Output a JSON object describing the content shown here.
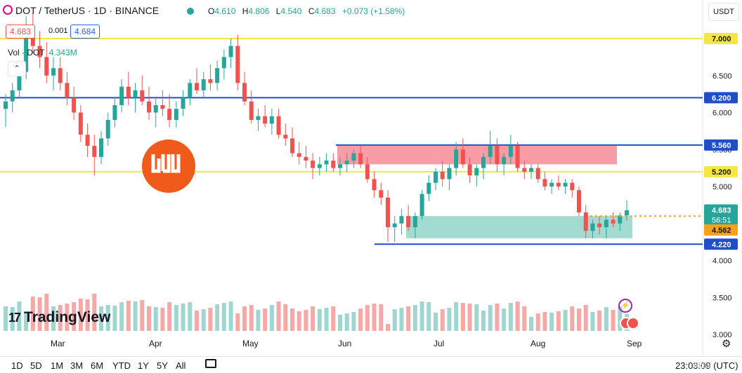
{
  "header": {
    "symbol": "DOT / TetherUS · 1D · BINANCE",
    "ohlc_o_label": "O",
    "ohlc_o": "4.610",
    "ohlc_h_label": "H",
    "ohlc_h": "4.806",
    "ohlc_l_label": "L",
    "ohlc_l": "4.540",
    "ohlc_c_label": "C",
    "ohlc_c": "4.683",
    "ohlc_change": "+0.073 (+1.58%)",
    "sell_price": "4.683",
    "spread": "0.001",
    "buy_price": "4.684",
    "volume_label": "Vol · DOT",
    "volume_value": "4.343M",
    "currency": "USDT",
    "collapse_glyph": "⌃"
  },
  "logo": {
    "text": "TradingView",
    "mark": "17"
  },
  "bottom": {
    "timeframes": [
      "1D",
      "5D",
      "1M",
      "3M",
      "6M",
      "YTD",
      "1Y",
      "5Y",
      "All"
    ],
    "time": "23:03:09 (UTC)",
    "watermark": "Aktiv"
  },
  "colors": {
    "up": "#26a69a",
    "down": "#ef5350",
    "vol_up": "#9fd6cf",
    "vol_down": "#f5a8a6",
    "yellow_line": "#f5e642",
    "blue_line": "#1e4fc8",
    "resistance_zone": "#f78c97",
    "support_zone": "#93d5c8",
    "current_price_line": "#f7a11a",
    "brand_badge": "#f05a1a"
  },
  "chart_data": {
    "type": "candlestick",
    "y_axis": {
      "range": [
        3.0,
        7.25
      ],
      "ticks": [
        "7.000",
        "6.500",
        "6.000",
        "5.500",
        "5.000",
        "4.500",
        "4.000",
        "3.500",
        "3.000"
      ],
      "tick_values": [
        7.0,
        6.5,
        6.0,
        5.5,
        5.0,
        4.5,
        4.0,
        3.5,
        3.0
      ]
    },
    "x_axis": {
      "ticks": [
        "Mar",
        "Apr",
        "May",
        "Jun",
        "Jul",
        "Aug",
        "Sep"
      ]
    },
    "horizontal_lines": [
      {
        "price": 7.0,
        "label": "7.000",
        "style": "yellow"
      },
      {
        "price": 6.2,
        "label": "6.200",
        "style": "blue"
      },
      {
        "price": 5.56,
        "label": "5.560",
        "style": "blue"
      },
      {
        "price": 5.2,
        "label": "5.200",
        "style": "yellow"
      },
      {
        "price": 4.22,
        "label": "4.220",
        "style": "blue"
      }
    ],
    "zones": [
      {
        "kind": "resistance",
        "from_price": 5.3,
        "to_price": 5.55
      },
      {
        "kind": "support",
        "from_price": 4.3,
        "to_price": 4.6
      }
    ],
    "current_price": {
      "value": "4.683",
      "countdown": "56:51",
      "secondary": "4.562"
    },
    "candles": [
      [
        6.05,
        6.25,
        5.8,
        6.15
      ],
      [
        6.15,
        6.4,
        6.0,
        6.3
      ],
      [
        6.3,
        6.7,
        6.2,
        6.55
      ],
      [
        6.55,
        7.3,
        6.45,
        7.1
      ],
      [
        7.1,
        7.35,
        6.8,
        6.9
      ],
      [
        6.9,
        7.1,
        6.6,
        6.75
      ],
      [
        6.75,
        6.95,
        6.4,
        6.5
      ],
      [
        6.5,
        6.75,
        6.3,
        6.6
      ],
      [
        6.6,
        6.75,
        6.3,
        6.4
      ],
      [
        6.4,
        6.55,
        6.1,
        6.2
      ],
      [
        6.2,
        6.35,
        5.9,
        6.0
      ],
      [
        6.0,
        6.1,
        5.6,
        5.7
      ],
      [
        5.7,
        5.85,
        5.4,
        5.55
      ],
      [
        5.55,
        5.7,
        5.15,
        5.4
      ],
      [
        5.4,
        5.75,
        5.3,
        5.65
      ],
      [
        5.65,
        6.0,
        5.55,
        5.9
      ],
      [
        5.9,
        6.2,
        5.8,
        6.1
      ],
      [
        6.1,
        6.45,
        6.0,
        6.35
      ],
      [
        6.35,
        6.55,
        6.1,
        6.2
      ],
      [
        6.2,
        6.4,
        6.0,
        6.3
      ],
      [
        6.3,
        6.5,
        6.1,
        6.15
      ],
      [
        6.15,
        6.35,
        5.9,
        6.0
      ],
      [
        6.0,
        6.2,
        5.8,
        6.1
      ],
      [
        6.1,
        6.3,
        5.95,
        6.05
      ],
      [
        6.05,
        6.25,
        5.8,
        5.9
      ],
      [
        5.9,
        6.15,
        5.8,
        6.05
      ],
      [
        6.05,
        6.3,
        5.95,
        6.2
      ],
      [
        6.2,
        6.45,
        6.1,
        6.4
      ],
      [
        6.4,
        6.6,
        6.25,
        6.3
      ],
      [
        6.3,
        6.55,
        6.2,
        6.45
      ],
      [
        6.45,
        6.65,
        6.3,
        6.4
      ],
      [
        6.4,
        6.7,
        6.3,
        6.6
      ],
      [
        6.6,
        6.85,
        6.45,
        6.75
      ],
      [
        6.75,
        7.0,
        6.6,
        6.9
      ],
      [
        6.9,
        7.05,
        6.3,
        6.4
      ],
      [
        6.4,
        6.55,
        6.1,
        6.15
      ],
      [
        6.15,
        6.3,
        5.85,
        5.9
      ],
      [
        5.9,
        6.05,
        5.75,
        5.95
      ],
      [
        5.95,
        6.1,
        5.8,
        5.85
      ],
      [
        5.85,
        6.05,
        5.7,
        5.95
      ],
      [
        5.95,
        6.05,
        5.65,
        5.7
      ],
      [
        5.7,
        5.85,
        5.55,
        5.65
      ],
      [
        5.65,
        5.8,
        5.4,
        5.45
      ],
      [
        5.45,
        5.6,
        5.3,
        5.4
      ],
      [
        5.4,
        5.55,
        5.25,
        5.35
      ],
      [
        5.35,
        5.45,
        5.1,
        5.25
      ],
      [
        5.25,
        5.4,
        5.15,
        5.3
      ],
      [
        5.3,
        5.45,
        5.2,
        5.35
      ],
      [
        5.35,
        5.45,
        5.2,
        5.25
      ],
      [
        5.25,
        5.4,
        5.15,
        5.3
      ],
      [
        5.3,
        5.45,
        5.2,
        5.35
      ],
      [
        5.35,
        5.5,
        5.25,
        5.45
      ],
      [
        5.45,
        5.55,
        5.25,
        5.3
      ],
      [
        5.3,
        5.4,
        5.05,
        5.1
      ],
      [
        5.1,
        5.2,
        4.85,
        4.95
      ],
      [
        4.95,
        5.05,
        4.75,
        4.85
      ],
      [
        4.85,
        4.95,
        4.25,
        4.45
      ],
      [
        4.45,
        4.6,
        4.25,
        4.5
      ],
      [
        4.5,
        4.7,
        4.35,
        4.6
      ],
      [
        4.6,
        4.75,
        4.4,
        4.45
      ],
      [
        4.45,
        4.65,
        4.3,
        4.6
      ],
      [
        4.6,
        4.95,
        4.55,
        4.9
      ],
      [
        4.9,
        5.15,
        4.8,
        5.05
      ],
      [
        5.05,
        5.25,
        4.95,
        5.2
      ],
      [
        5.2,
        5.35,
        5.0,
        5.1
      ],
      [
        5.1,
        5.3,
        4.95,
        5.25
      ],
      [
        5.25,
        5.6,
        5.15,
        5.5
      ],
      [
        5.5,
        5.65,
        5.25,
        5.3
      ],
      [
        5.3,
        5.4,
        5.05,
        5.15
      ],
      [
        5.15,
        5.3,
        5.0,
        5.25
      ],
      [
        5.25,
        5.45,
        5.1,
        5.4
      ],
      [
        5.4,
        5.75,
        5.3,
        5.55
      ],
      [
        5.55,
        5.65,
        5.2,
        5.3
      ],
      [
        5.3,
        5.45,
        5.15,
        5.4
      ],
      [
        5.4,
        5.7,
        5.3,
        5.55
      ],
      [
        5.55,
        5.6,
        5.2,
        5.25
      ],
      [
        5.25,
        5.35,
        5.1,
        5.2
      ],
      [
        5.2,
        5.3,
        5.1,
        5.25
      ],
      [
        5.25,
        5.3,
        5.05,
        5.1
      ],
      [
        5.1,
        5.2,
        4.95,
        5.0
      ],
      [
        5.0,
        5.1,
        4.9,
        5.05
      ],
      [
        5.05,
        5.15,
        4.95,
        5.0
      ],
      [
        5.0,
        5.1,
        4.9,
        5.05
      ],
      [
        5.05,
        5.1,
        4.85,
        4.95
      ],
      [
        4.95,
        5.0,
        4.6,
        4.65
      ],
      [
        4.65,
        4.75,
        4.3,
        4.4
      ],
      [
        4.4,
        4.55,
        4.3,
        4.5
      ],
      [
        4.5,
        4.6,
        4.35,
        4.45
      ],
      [
        4.45,
        4.6,
        4.3,
        4.55
      ],
      [
        4.55,
        4.65,
        4.45,
        4.5
      ],
      [
        4.5,
        4.65,
        4.4,
        4.61
      ],
      [
        4.61,
        4.81,
        4.54,
        4.68
      ]
    ]
  }
}
